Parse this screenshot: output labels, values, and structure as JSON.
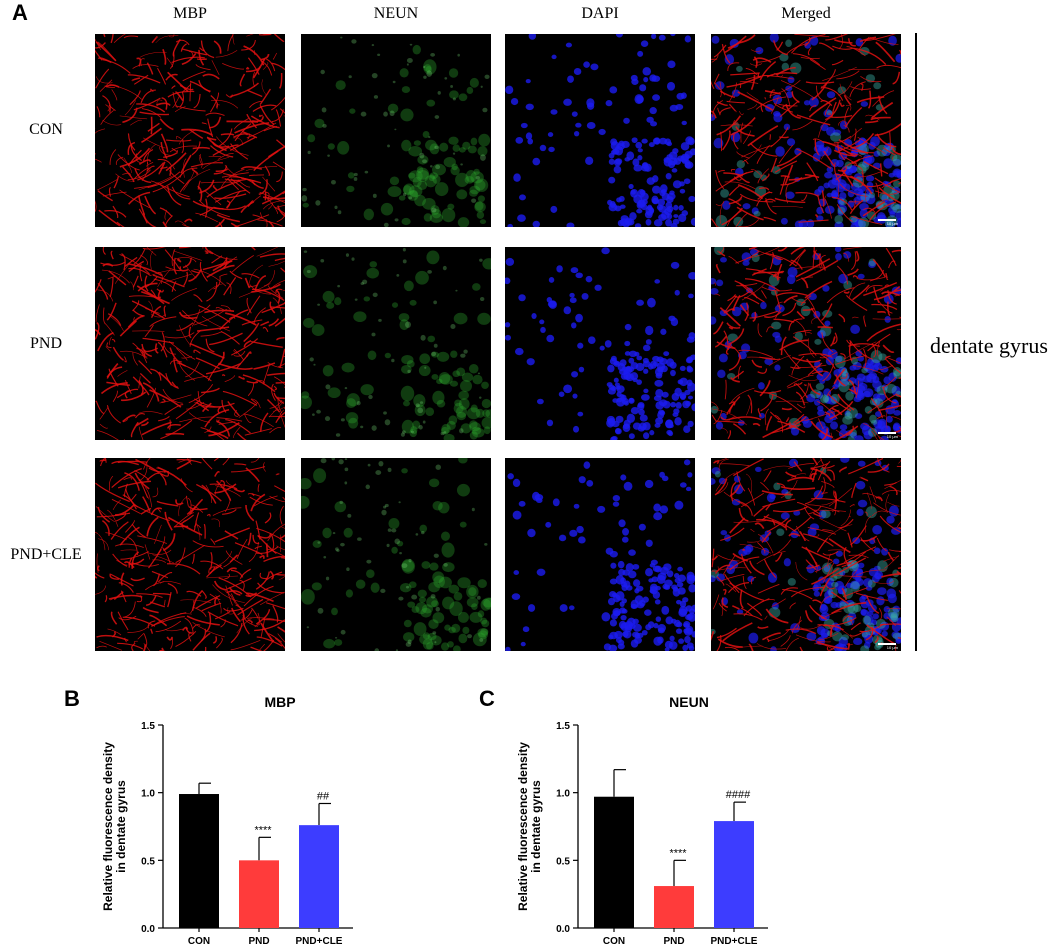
{
  "panels": {
    "a": "A",
    "b": "B",
    "c": "C"
  },
  "columns": [
    "MBP",
    "NEUN",
    "DAPI",
    "Merged"
  ],
  "rows": [
    "CON",
    "PND",
    "PND+CLE"
  ],
  "region_label": "dentate gyrus",
  "scale_text": "10 μm",
  "channel_colors": {
    "MBP": "#e01010",
    "NEUN": "#2ea82e",
    "DAPI": "#1c1cf0"
  },
  "chart_data": [
    {
      "type": "bar",
      "title": "MBP",
      "ylabel_lines": [
        "Relative fluorescence density",
        "in dentate gyrus"
      ],
      "categories": [
        "CON",
        "PND",
        "PND+CLE"
      ],
      "values": [
        0.99,
        0.5,
        0.76
      ],
      "errors": [
        0.08,
        0.17,
        0.16
      ],
      "significance": [
        "",
        "****",
        "##"
      ],
      "bar_colors": [
        "#000000",
        "#ff3b3b",
        "#3d3dff"
      ],
      "ylim": [
        0,
        1.5
      ],
      "yticks": [
        "0.0",
        "0.5",
        "1.0",
        "1.5"
      ]
    },
    {
      "type": "bar",
      "title": "NEUN",
      "ylabel_lines": [
        "Relative fluorescence density",
        "in dentate gyrus"
      ],
      "categories": [
        "CON",
        "PND",
        "PND+CLE"
      ],
      "values": [
        0.97,
        0.31,
        0.79
      ],
      "errors": [
        0.2,
        0.19,
        0.14
      ],
      "significance": [
        "",
        "****",
        "####"
      ],
      "bar_colors": [
        "#000000",
        "#ff3b3b",
        "#3d3dff"
      ],
      "ylim": [
        0,
        1.5
      ],
      "yticks": [
        "0.0",
        "0.5",
        "1.0",
        "1.5"
      ]
    }
  ]
}
